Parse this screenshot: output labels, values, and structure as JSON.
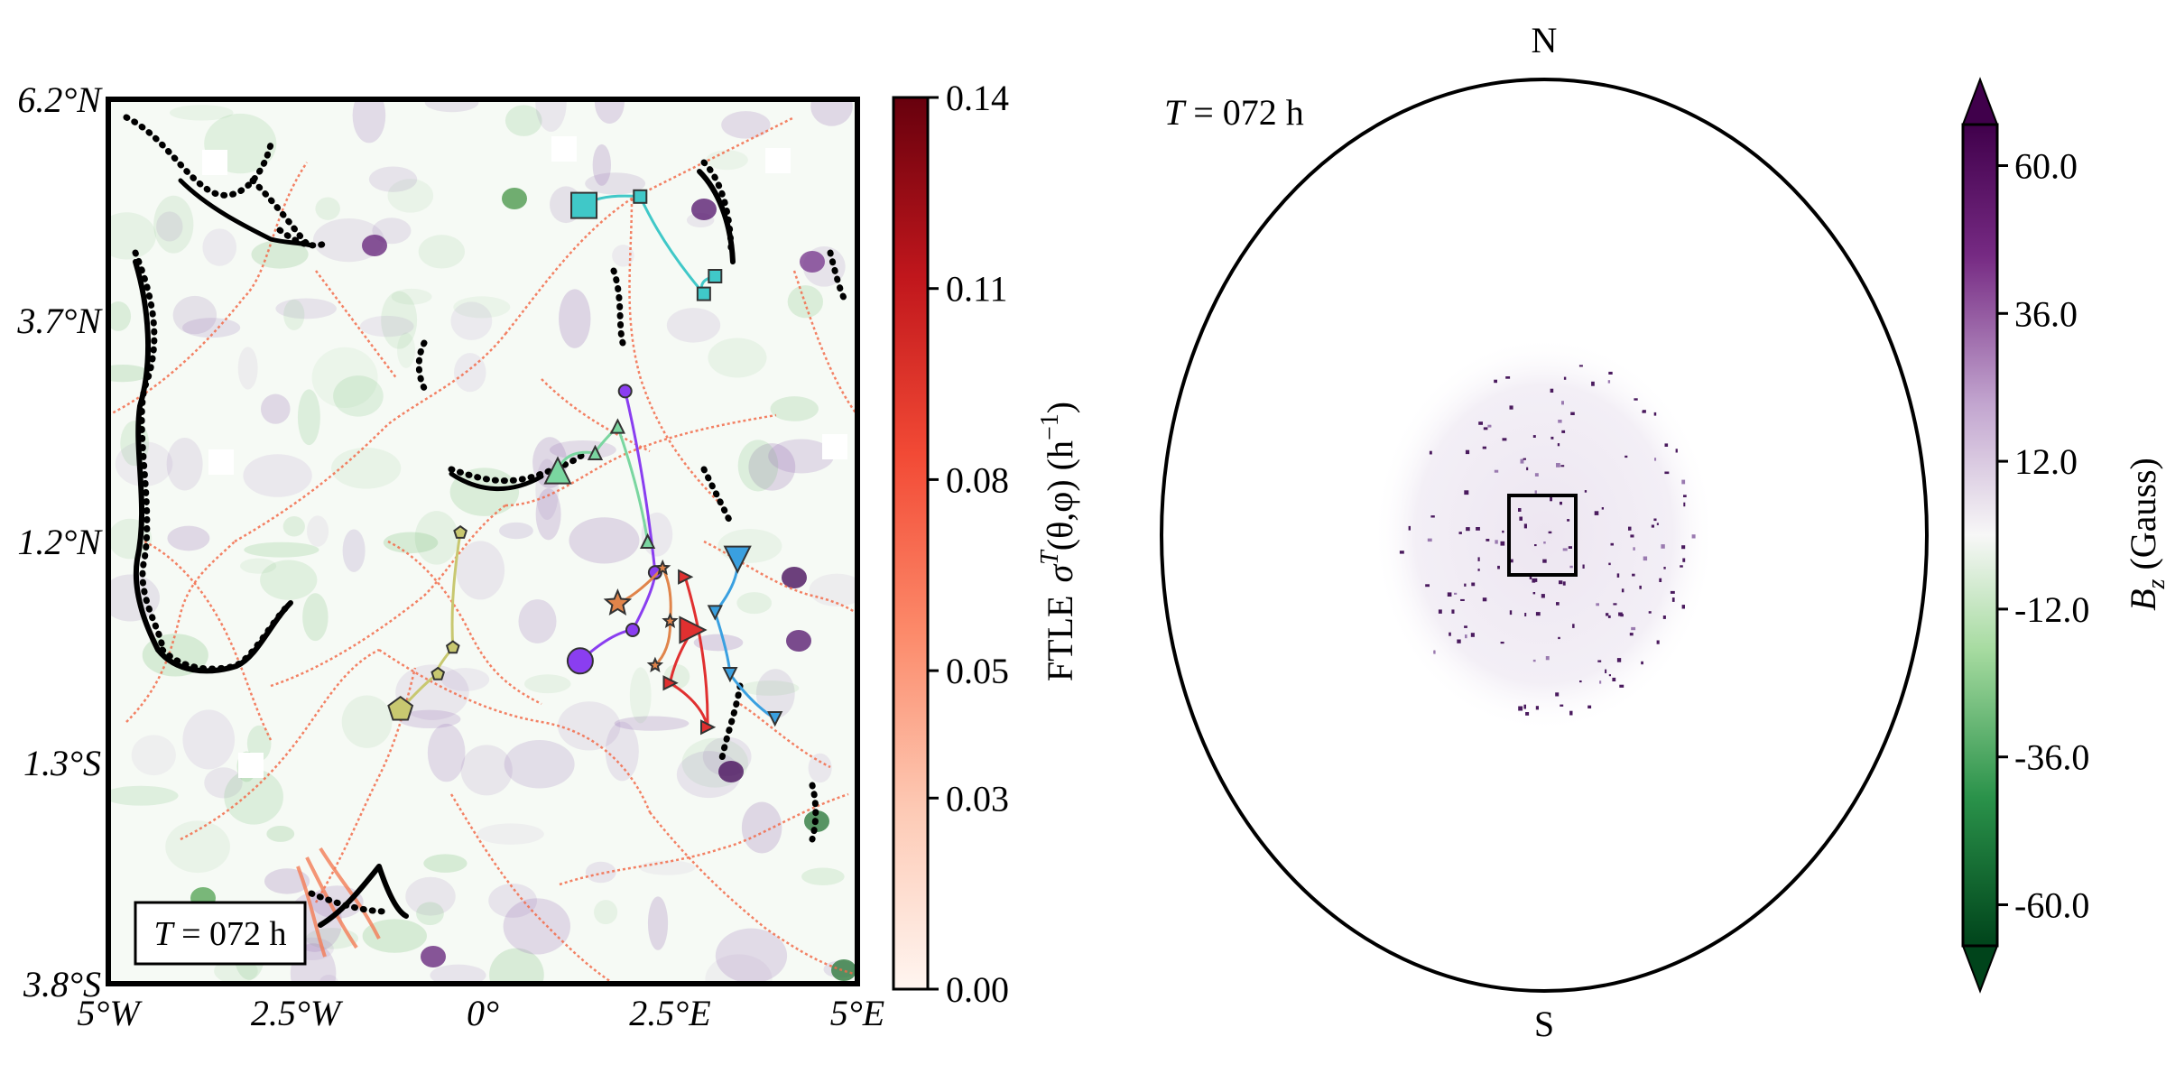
{
  "chart_data": [
    {
      "type": "heatmap",
      "panel": "ftle-map",
      "x_tick_labels": [
        "5°W",
        "2.5°W",
        "0°",
        "2.5°E",
        "5°E"
      ],
      "x_tick_values": [
        -5,
        -2.5,
        0,
        2.5,
        5
      ],
      "y_tick_labels": [
        "6.2°N",
        "3.7°N",
        "1.2°N",
        "1.3°S",
        "3.8°S"
      ],
      "y_tick_values": [
        6.2,
        3.7,
        1.2,
        -1.3,
        -3.8
      ],
      "xlim": [
        -5,
        5
      ],
      "ylim": [
        -3.8,
        6.2
      ],
      "time_label_prefix": "T",
      "time_label_value": " = 072 h",
      "colorbar": {
        "label_prefix": "FTLE",
        "label_symbol": "σ",
        "label_superscript": "T",
        "label_args": "(θ,φ) (h",
        "label_unit_exp": "−1",
        "label_close": ")",
        "ticks": [
          "0.00",
          "0.03",
          "0.05",
          "0.08",
          "0.11",
          "0.14"
        ],
        "tick_values": [
          0.0,
          0.03,
          0.05,
          0.08,
          0.11,
          0.14
        ],
        "range": [
          0.0,
          0.14
        ],
        "colors": [
          "#fff5f0",
          "#fdcab5",
          "#fc8a6a",
          "#f24a35",
          "#c0161c",
          "#67000d"
        ]
      },
      "trajectories": [
        {
          "color": "#40c8c8",
          "marker": "square",
          "points": [
            [
              1.35,
              5.0
            ],
            [
              2.1,
              5.1
            ],
            [
              2.95,
              4.0
            ],
            [
              3.1,
              4.2
            ]
          ]
        },
        {
          "color": "#8a3ef0",
          "marker": "circle",
          "points": [
            [
              1.3,
              -0.15
            ],
            [
              2.0,
              0.2
            ],
            [
              2.3,
              0.85
            ],
            [
              1.9,
              2.9
            ]
          ]
        },
        {
          "color": "#3aa0e0",
          "marker": "triangle-down",
          "points": [
            [
              3.4,
              1.0
            ],
            [
              3.1,
              0.4
            ],
            [
              3.3,
              -0.3
            ],
            [
              3.9,
              -0.8
            ]
          ]
        },
        {
          "color": "#e03030",
          "marker": "triangle-right",
          "points": [
            [
              2.8,
              0.2
            ],
            [
              2.5,
              -0.4
            ],
            [
              3.0,
              -0.9
            ],
            [
              2.7,
              0.8
            ]
          ]
        },
        {
          "color": "#c8c870",
          "marker": "pentagon",
          "points": [
            [
              -1.1,
              -0.7
            ],
            [
              -0.6,
              -0.3
            ],
            [
              -0.4,
              0.0
            ],
            [
              -0.3,
              1.3
            ]
          ]
        },
        {
          "color": "#7ad6a0",
          "marker": "triangle-up",
          "points": [
            [
              1.0,
              2.0
            ],
            [
              1.5,
              2.2
            ],
            [
              1.8,
              2.5
            ],
            [
              2.2,
              1.2
            ]
          ]
        },
        {
          "color": "#e0844a",
          "marker": "star",
          "points": [
            [
              1.8,
              0.5
            ],
            [
              2.4,
              0.9
            ],
            [
              2.5,
              0.3
            ],
            [
              2.3,
              -0.2
            ]
          ]
        }
      ]
    },
    {
      "type": "heatmap",
      "panel": "bz-disk",
      "north_label": "N",
      "south_label": "S",
      "time_label_prefix": "T",
      "time_label_value": " = 072 h",
      "colorbar": {
        "label_symbol": "B",
        "label_sub": "z",
        "label_unit": " (Gauss)",
        "ticks": [
          "60.0",
          "36.0",
          "12.0",
          "-12.0",
          "-36.0",
          "-60.0"
        ],
        "tick_values": [
          60,
          36,
          12,
          -12,
          -36,
          -60
        ],
        "range": [
          -60,
          60
        ],
        "colors": [
          "#00441b",
          "#2a924a",
          "#a6dba0",
          "#f7f7f7",
          "#c2a5cf",
          "#762a83",
          "#40004b"
        ]
      }
    }
  ]
}
